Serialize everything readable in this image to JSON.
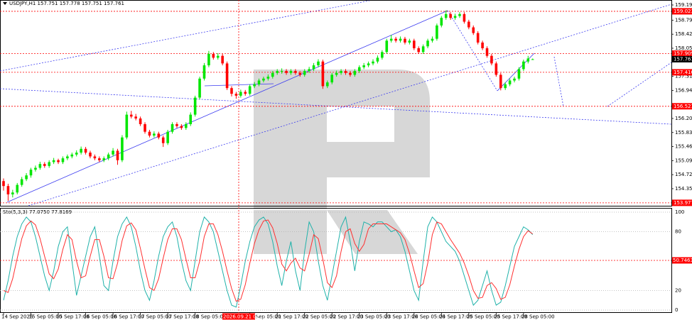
{
  "chart_data": {
    "type": "candlestick",
    "header": "USDJPY,H1  157.751 157.778 157.751 157.761",
    "cursor_time": "2026.09.21 02:00",
    "ylim": [
      153.9,
      159.321
    ],
    "yticks": [
      {
        "value": 159.19,
        "label": "159.190"
      },
      {
        "value": 158.79,
        "label": "158.790"
      },
      {
        "value": 158.42,
        "label": "158.420"
      },
      {
        "value": 158.05,
        "label": "158.050"
      },
      {
        "value": 157.31,
        "label": "157.310"
      },
      {
        "value": 156.94,
        "label": "156.940"
      },
      {
        "value": 156.2,
        "label": "156.200"
      },
      {
        "value": 155.83,
        "label": "155.830"
      },
      {
        "value": 155.46,
        "label": "155.460"
      },
      {
        "value": 155.09,
        "label": "155.090"
      },
      {
        "value": 154.72,
        "label": "154.720"
      },
      {
        "value": 154.35,
        "label": "154.350"
      }
    ],
    "levels": [
      159.023,
      157.909,
      157.416,
      156.521,
      153.977
    ],
    "last_price": 157.761,
    "colors": {
      "up": "#00e600",
      "down": "#ff0000",
      "level": "#ff0000"
    },
    "xticks": [
      {
        "value": 0,
        "label": "14 Sep 2026"
      },
      {
        "value": 6,
        "label": "15 Sep 05:00"
      },
      {
        "value": 12,
        "label": "15 Sep 17:00"
      },
      {
        "value": 18,
        "label": "16 Sep 05:00"
      },
      {
        "value": 24,
        "label": "16 Sep 17:00"
      },
      {
        "value": 30,
        "label": "17 Sep 05:00"
      },
      {
        "value": 36,
        "label": "17 Sep 17:00"
      },
      {
        "value": 42,
        "label": "18 Sep 05:00"
      },
      {
        "value": 54,
        "label": "21 Sep 05:00"
      },
      {
        "value": 60,
        "label": "21 Sep 17:00"
      },
      {
        "value": 66,
        "label": "22 Sep 05:00"
      },
      {
        "value": 72,
        "label": "22 Sep 17:00"
      },
      {
        "value": 78,
        "label": "23 Sep 05:00"
      },
      {
        "value": 84,
        "label": "23 Sep 17:00"
      },
      {
        "value": 90,
        "label": "24 Sep 05:00"
      },
      {
        "value": 96,
        "label": "24 Sep 17:00"
      },
      {
        "value": 102,
        "label": "25 Sep 05:00"
      },
      {
        "value": 108,
        "label": "25 Sep 17:00"
      },
      {
        "value": 114,
        "label": "28 Sep 05:00"
      }
    ],
    "candles": [
      [
        154.55,
        154.62,
        154.3,
        154.42
      ],
      [
        154.42,
        154.48,
        154.03,
        154.2
      ],
      [
        154.2,
        154.32,
        154.12,
        154.25
      ],
      [
        154.25,
        154.5,
        154.2,
        154.45
      ],
      [
        154.45,
        154.66,
        154.4,
        154.6
      ],
      [
        154.6,
        154.76,
        154.55,
        154.7
      ],
      [
        154.7,
        154.9,
        154.64,
        154.85
      ],
      [
        154.85,
        154.96,
        154.8,
        154.9
      ],
      [
        154.9,
        155.06,
        154.85,
        155.0
      ],
      [
        155.0,
        155.05,
        154.9,
        154.95
      ],
      [
        154.95,
        155.1,
        154.9,
        155.05
      ],
      [
        155.05,
        155.16,
        155.0,
        155.1
      ],
      [
        155.1,
        155.14,
        155.0,
        155.05
      ],
      [
        155.05,
        155.2,
        155.0,
        155.15
      ],
      [
        155.15,
        155.25,
        155.1,
        155.2
      ],
      [
        155.2,
        155.3,
        155.15,
        155.25
      ],
      [
        155.25,
        155.36,
        155.2,
        155.3
      ],
      [
        155.3,
        155.46,
        155.25,
        155.4
      ],
      [
        155.4,
        155.45,
        155.25,
        155.3
      ],
      [
        155.3,
        155.35,
        155.15,
        155.2
      ],
      [
        155.2,
        155.25,
        155.1,
        155.15
      ],
      [
        155.15,
        155.2,
        155.05,
        155.1
      ],
      [
        155.1,
        155.2,
        155.05,
        155.15
      ],
      [
        155.15,
        155.3,
        155.1,
        155.25
      ],
      [
        155.25,
        155.42,
        155.2,
        155.35
      ],
      [
        155.35,
        155.4,
        154.98,
        155.1
      ],
      [
        155.1,
        155.76,
        155.05,
        155.7
      ],
      [
        155.7,
        156.38,
        155.65,
        156.3
      ],
      [
        156.3,
        156.4,
        156.2,
        156.25
      ],
      [
        156.25,
        156.32,
        156.15,
        156.2
      ],
      [
        156.2,
        156.25,
        156.0,
        156.05
      ],
      [
        156.05,
        156.1,
        155.8,
        155.85
      ],
      [
        155.85,
        155.9,
        155.7,
        155.75
      ],
      [
        155.75,
        155.86,
        155.7,
        155.8
      ],
      [
        155.8,
        155.85,
        155.65,
        155.7
      ],
      [
        155.7,
        155.75,
        155.45,
        155.55
      ],
      [
        155.55,
        155.9,
        155.5,
        155.85
      ],
      [
        155.85,
        156.1,
        155.8,
        156.05
      ],
      [
        156.05,
        156.1,
        155.95,
        156.0
      ],
      [
        156.0,
        156.05,
        155.9,
        155.95
      ],
      [
        155.95,
        156.1,
        155.9,
        156.05
      ],
      [
        156.05,
        156.36,
        156.0,
        156.3
      ],
      [
        156.3,
        156.8,
        156.25,
        156.75
      ],
      [
        156.75,
        157.3,
        156.7,
        157.25
      ],
      [
        157.25,
        157.66,
        157.2,
        157.6
      ],
      [
        157.6,
        157.98,
        157.55,
        157.9
      ],
      [
        157.9,
        157.95,
        157.75,
        157.8
      ],
      [
        157.8,
        157.92,
        157.75,
        157.85
      ],
      [
        157.85,
        157.9,
        157.6,
        157.65
      ],
      [
        157.65,
        157.7,
        156.95,
        157.0
      ],
      [
        157.0,
        157.05,
        156.78,
        156.85
      ],
      [
        156.85,
        156.9,
        156.72,
        156.8
      ],
      [
        156.8,
        156.96,
        156.75,
        156.9
      ],
      [
        156.9,
        156.95,
        156.8,
        156.85
      ],
      [
        156.85,
        157.1,
        156.8,
        157.05
      ],
      [
        157.05,
        157.16,
        157.0,
        157.1
      ],
      [
        157.1,
        157.25,
        157.05,
        157.2
      ],
      [
        157.2,
        157.3,
        157.15,
        157.25
      ],
      [
        157.25,
        157.36,
        157.2,
        157.3
      ],
      [
        157.3,
        157.45,
        157.25,
        157.4
      ],
      [
        157.4,
        157.5,
        157.35,
        157.45
      ],
      [
        157.45,
        157.52,
        157.38,
        157.45
      ],
      [
        157.45,
        157.5,
        157.35,
        157.4
      ],
      [
        157.4,
        157.5,
        157.35,
        157.45
      ],
      [
        157.45,
        157.5,
        157.35,
        157.4
      ],
      [
        157.4,
        157.45,
        157.3,
        157.35
      ],
      [
        157.35,
        157.5,
        157.3,
        157.45
      ],
      [
        157.45,
        157.56,
        157.4,
        157.5
      ],
      [
        157.5,
        157.66,
        157.45,
        157.6
      ],
      [
        157.6,
        157.76,
        157.55,
        157.7
      ],
      [
        157.7,
        157.75,
        156.98,
        157.05
      ],
      [
        157.05,
        157.2,
        157.0,
        157.15
      ],
      [
        157.15,
        157.4,
        157.1,
        157.35
      ],
      [
        157.35,
        157.46,
        157.3,
        157.4
      ],
      [
        157.4,
        157.5,
        157.35,
        157.45
      ],
      [
        157.45,
        157.5,
        157.35,
        157.4
      ],
      [
        157.4,
        157.45,
        157.3,
        157.35
      ],
      [
        157.35,
        157.5,
        157.3,
        157.45
      ],
      [
        157.45,
        157.6,
        157.4,
        157.55
      ],
      [
        157.55,
        157.66,
        157.5,
        157.6
      ],
      [
        157.6,
        157.7,
        157.55,
        157.65
      ],
      [
        157.65,
        157.76,
        157.6,
        157.7
      ],
      [
        157.7,
        157.86,
        157.65,
        157.8
      ],
      [
        157.8,
        158.0,
        157.75,
        157.95
      ],
      [
        157.95,
        158.3,
        157.9,
        158.25
      ],
      [
        158.25,
        158.4,
        158.2,
        158.3
      ],
      [
        158.3,
        158.35,
        158.2,
        158.25
      ],
      [
        158.25,
        158.36,
        158.2,
        158.3
      ],
      [
        158.3,
        158.35,
        158.15,
        158.2
      ],
      [
        158.2,
        158.3,
        158.15,
        158.25
      ],
      [
        158.25,
        158.3,
        158.0,
        158.05
      ],
      [
        158.05,
        158.1,
        157.9,
        157.95
      ],
      [
        157.95,
        158.15,
        157.9,
        158.1
      ],
      [
        158.1,
        158.3,
        158.05,
        158.25
      ],
      [
        158.25,
        158.36,
        158.2,
        158.3
      ],
      [
        158.3,
        158.7,
        158.25,
        158.65
      ],
      [
        158.65,
        158.9,
        158.6,
        158.85
      ],
      [
        158.85,
        159.05,
        158.8,
        158.95
      ],
      [
        158.95,
        159.0,
        158.8,
        158.85
      ],
      [
        158.85,
        158.96,
        158.8,
        158.9
      ],
      [
        158.9,
        159.0,
        158.85,
        158.95
      ],
      [
        158.95,
        159.0,
        158.7,
        158.75
      ],
      [
        158.75,
        158.8,
        158.55,
        158.6
      ],
      [
        158.6,
        158.65,
        158.4,
        158.45
      ],
      [
        158.45,
        158.5,
        158.15,
        158.2
      ],
      [
        158.2,
        158.25,
        158.0,
        158.05
      ],
      [
        158.05,
        158.1,
        157.8,
        157.85
      ],
      [
        157.85,
        157.9,
        157.6,
        157.65
      ],
      [
        157.65,
        157.7,
        157.3,
        157.35
      ],
      [
        157.35,
        157.4,
        156.94,
        157.0
      ],
      [
        157.0,
        157.15,
        156.95,
        157.1
      ],
      [
        157.1,
        157.25,
        157.05,
        157.2
      ],
      [
        157.2,
        157.3,
        157.15,
        157.25
      ],
      [
        157.25,
        157.55,
        157.2,
        157.5
      ],
      [
        157.5,
        157.75,
        157.45,
        157.7
      ],
      [
        157.7,
        157.85,
        157.65,
        157.78
      ],
      [
        157.751,
        157.778,
        157.751,
        157.761
      ]
    ],
    "oscillator": {
      "type": "line",
      "title": "Sto(5,3,3) 77.0750 77.8169",
      "ylim": [
        -2.9,
        104.35
      ],
      "yticks": [
        100,
        80,
        20,
        0
      ],
      "levels": [
        50.7463
      ],
      "series": [
        {
          "color": "#20b2aa",
          "values": [
            10,
            30,
            55,
            75,
            88,
            95,
            90,
            75,
            55,
            35,
            20,
            40,
            65,
            80,
            85,
            50,
            15,
            35,
            55,
            75,
            85,
            55,
            25,
            20,
            50,
            75,
            88,
            95,
            85,
            65,
            40,
            20,
            10,
            30,
            55,
            75,
            85,
            90,
            75,
            50,
            30,
            20,
            50,
            80,
            95,
            90,
            80,
            60,
            40,
            20,
            5,
            3,
            25,
            50,
            70,
            85,
            92,
            95,
            88,
            70,
            45,
            25,
            50,
            70,
            40,
            20,
            60,
            90,
            80,
            50,
            25,
            10,
            35,
            60,
            85,
            95,
            70,
            40,
            70,
            90,
            88,
            85,
            90,
            90,
            85,
            80,
            82,
            75,
            60,
            40,
            20,
            10,
            50,
            85,
            95,
            90,
            80,
            70,
            65,
            60,
            50,
            35,
            20,
            5,
            10,
            25,
            40,
            20,
            5,
            8,
            25,
            45,
            65,
            75,
            85,
            82,
            77.075
          ]
        },
        {
          "color": "#ff3030",
          "values": [
            20,
            18,
            32,
            53,
            73,
            86,
            91,
            87,
            73,
            55,
            37,
            32,
            42,
            62,
            77,
            72,
            50,
            33,
            35,
            55,
            72,
            72,
            55,
            33,
            32,
            48,
            71,
            86,
            89,
            82,
            63,
            42,
            23,
            20,
            32,
            53,
            72,
            83,
            83,
            72,
            52,
            33,
            33,
            50,
            75,
            88,
            88,
            77,
            60,
            40,
            22,
            9,
            11,
            26,
            48,
            68,
            82,
            91,
            92,
            84,
            68,
            47,
            40,
            48,
            53,
            43,
            40,
            57,
            77,
            73,
            52,
            28,
            23,
            35,
            60,
            80,
            83,
            68,
            60,
            67,
            83,
            88,
            88,
            88,
            88,
            85,
            82,
            79,
            72,
            58,
            40,
            23,
            27,
            48,
            77,
            90,
            88,
            80,
            72,
            65,
            58,
            48,
            35,
            20,
            12,
            13,
            25,
            28,
            22,
            11,
            13,
            26,
            45,
            62,
            75,
            81,
            77.8169
          ]
        }
      ]
    }
  }
}
